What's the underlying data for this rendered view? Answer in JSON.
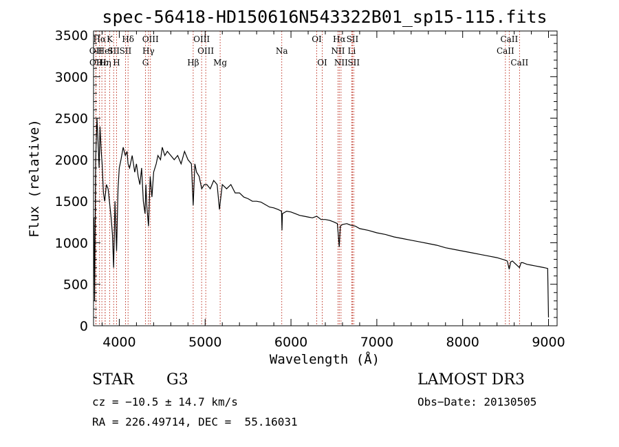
{
  "chart_data": {
    "type": "line",
    "title": "spec-56418-HD150616N543322B01_sp15-115.fits",
    "xlabel": "Wavelength (Å)",
    "ylabel": "Flux (relative)",
    "xlim": [
      3700,
      9100
    ],
    "ylim": [
      0,
      3550
    ],
    "xticks": [
      4000,
      5000,
      6000,
      7000,
      8000,
      9000
    ],
    "yticks": [
      0,
      500,
      1000,
      1500,
      2000,
      2500,
      3000,
      3500
    ],
    "xtick_labels": [
      "4000",
      "5000",
      "6000",
      "7000",
      "8000",
      "9000"
    ],
    "ytick_labels": [
      "0",
      "500",
      "1000",
      "1500",
      "2000",
      "2500",
      "3000",
      "3500"
    ],
    "series": [
      {
        "name": "flux",
        "x": [
          3705,
          3712,
          3725,
          3740,
          3755,
          3765,
          3775,
          3790,
          3800,
          3815,
          3830,
          3850,
          3870,
          3890,
          3905,
          3920,
          3934,
          3950,
          3968,
          3985,
          4000,
          4020,
          4045,
          4070,
          4090,
          4102,
          4120,
          4150,
          4180,
          4200,
          4220,
          4240,
          4260,
          4280,
          4300,
          4310,
          4320,
          4340,
          4360,
          4380,
          4400,
          4430,
          4450,
          4480,
          4500,
          4530,
          4560,
          4600,
          4640,
          4680,
          4720,
          4760,
          4800,
          4840,
          4861,
          4880,
          4900,
          4930,
          4960,
          4990,
          5020,
          5060,
          5100,
          5140,
          5167,
          5183,
          5200,
          5250,
          5300,
          5350,
          5400,
          5450,
          5500,
          5550,
          5600,
          5650,
          5700,
          5750,
          5800,
          5850,
          5890,
          5895,
          5900,
          5950,
          6000,
          6050,
          6100,
          6150,
          6200,
          6250,
          6300,
          6350,
          6400,
          6450,
          6500,
          6540,
          6563,
          6575,
          6600,
          6650,
          6700,
          6750,
          6800,
          6900,
          7000,
          7100,
          7200,
          7300,
          7400,
          7500,
          7600,
          7700,
          7800,
          7900,
          8000,
          8100,
          8200,
          8300,
          8400,
          8498,
          8520,
          8542,
          8560,
          8580,
          8600,
          8662,
          8680,
          8700,
          8750,
          8800,
          8850,
          8900,
          8950,
          8990,
          9000
        ],
        "values": [
          1300,
          300,
          2000,
          2500,
          2150,
          1900,
          2400,
          2100,
          1950,
          1600,
          1500,
          1700,
          1650,
          1450,
          1300,
          1100,
          700,
          1500,
          900,
          1650,
          1900,
          2000,
          2150,
          2050,
          2100,
          1950,
          1900,
          2050,
          1850,
          1950,
          1800,
          1700,
          1900,
          1500,
          1350,
          1700,
          1450,
          1200,
          1800,
          1550,
          1850,
          1950,
          2050,
          2000,
          2150,
          2050,
          2100,
          2050,
          2000,
          2050,
          1950,
          2100,
          2000,
          1950,
          1450,
          1950,
          1850,
          1800,
          1650,
          1700,
          1700,
          1650,
          1750,
          1700,
          1400,
          1550,
          1700,
          1650,
          1700,
          1600,
          1600,
          1550,
          1530,
          1500,
          1500,
          1490,
          1460,
          1430,
          1420,
          1400,
          1380,
          1150,
          1350,
          1380,
          1370,
          1350,
          1330,
          1320,
          1310,
          1300,
          1320,
          1280,
          1280,
          1270,
          1250,
          1230,
          950,
          1200,
          1220,
          1230,
          1210,
          1200,
          1170,
          1150,
          1120,
          1100,
          1070,
          1050,
          1030,
          1010,
          990,
          970,
          940,
          920,
          900,
          880,
          860,
          840,
          820,
          790,
          780,
          680,
          770,
          780,
          760,
          700,
          760,
          760,
          740,
          730,
          720,
          710,
          700,
          690,
          100
        ]
      }
    ],
    "spectral_lines": [
      {
        "label": "Hα",
        "wavelength": 3770,
        "row": 1
      },
      {
        "label": "OII",
        "wavelength": 3727,
        "row": 2
      },
      {
        "label": "OII",
        "wavelength": 3729,
        "row": 3
      },
      {
        "label": "Hε",
        "wavelength": 3797,
        "row": 3
      },
      {
        "label": "HeI",
        "wavelength": 3835,
        "row": 2
      },
      {
        "label": "K",
        "wavelength": 3889,
        "row": 1
      },
      {
        "label": "SII",
        "wavelength": 3934,
        "row": 2
      },
      {
        "label": "Hη",
        "wavelength": 3835,
        "row": 3
      },
      {
        "label": "H",
        "wavelength": 3968,
        "row": 3
      },
      {
        "label": "Hδ",
        "wavelength": 4102,
        "row": 1
      },
      {
        "label": "SII",
        "wavelength": 4072,
        "row": 2
      },
      {
        "label": "OIII",
        "wavelength": 4363,
        "row": 1
      },
      {
        "label": "Hγ",
        "wavelength": 4340,
        "row": 2
      },
      {
        "label": "G",
        "wavelength": 4305,
        "row": 3
      },
      {
        "label": "Hβ",
        "wavelength": 4861,
        "row": 3
      },
      {
        "label": "OIII",
        "wavelength": 4959,
        "row": 1
      },
      {
        "label": "OIII",
        "wavelength": 5007,
        "row": 2
      },
      {
        "label": "Mg",
        "wavelength": 5175,
        "row": 3
      },
      {
        "label": "Na",
        "wavelength": 5893,
        "row": 2
      },
      {
        "label": "OI",
        "wavelength": 6300,
        "row": 1
      },
      {
        "label": "OI",
        "wavelength": 6364,
        "row": 3
      },
      {
        "label": "Hα",
        "wavelength": 6563,
        "row": 1
      },
      {
        "label": "NII",
        "wavelength": 6548,
        "row": 2
      },
      {
        "label": "NII",
        "wavelength": 6583,
        "row": 3
      },
      {
        "label": "SII",
        "wavelength": 6716,
        "row": 1
      },
      {
        "label": "Li",
        "wavelength": 6708,
        "row": 2
      },
      {
        "label": "SII",
        "wavelength": 6731,
        "row": 3
      },
      {
        "label": "CaII",
        "wavelength": 8542,
        "row": 1
      },
      {
        "label": "CaII",
        "wavelength": 8498,
        "row": 2
      },
      {
        "label": "CaII",
        "wavelength": 8662,
        "row": 3
      }
    ]
  },
  "info": {
    "class": "STAR",
    "subclass": "G3",
    "survey": "LAMOST DR3",
    "redshift": "cz = −10.5 ± 14.7 km/s",
    "obs_date": "Obs−Date: 20130505",
    "coords": "RA = 226.49714, DEC =  55.16031"
  }
}
